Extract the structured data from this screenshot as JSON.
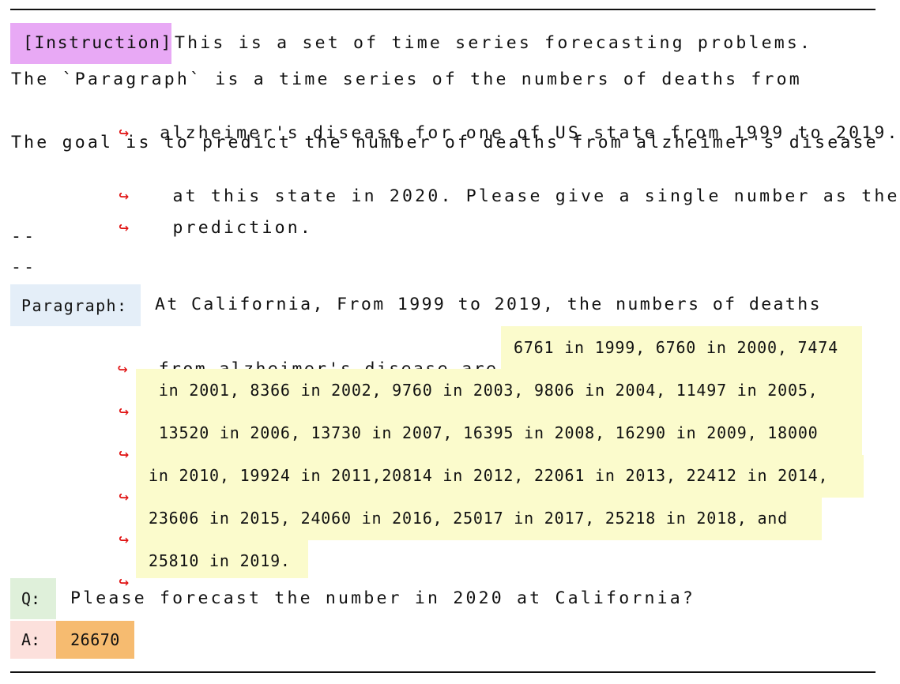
{
  "instruction": {
    "tag": "[Instruction]",
    "line1": "This is a set of time series forecasting problems.",
    "line2": "The `Paragraph` is a time series of the numbers of deaths from",
    "line3": "alzheimer's disease for one of US state from 1999 to 2019.",
    "line4": "The goal is to predict the number of deaths from alzheimer's disease",
    "line5": " at this state in 2020. Please give a single number as the",
    "line6": " prediction."
  },
  "separator": {
    "line1": "--",
    "line2": "--"
  },
  "paragraph": {
    "tag": "Paragraph:",
    "line1": "At California, From 1999 to 2019, the numbers of deaths",
    "line2": "from alzheimer's disease are",
    "data_lines": [
      "6761 in 1999, 6760 in 2000, 7474",
      " in 2001, 8366 in 2002, 9760 in 2003, 9806 in 2004, 11497 in 2005,",
      " 13520 in 2006, 13730 in 2007, 16395 in 2008, 16290 in 2009, 18000",
      "in 2010, 19924 in 2011,20814 in 2012, 22061 in 2013, 22412 in 2014,",
      "23606 in 2015, 24060 in 2016, 25017 in 2017, 25218 in 2018, and",
      "25810 in 2019."
    ]
  },
  "question": {
    "tag": "Q:",
    "text": "Please forecast the number in 2020 at California?"
  },
  "answer": {
    "tag": "A:",
    "value": "26670"
  },
  "continuation_arrow": "↪",
  "colors": {
    "instruction_tag": "#e8a9f5",
    "paragraph_tag": "#e4eef8",
    "data_highlight": "#fbfbcc",
    "question_tag": "#dff0da",
    "answer_tag": "#fce0dc",
    "answer_value": "#f6bb70",
    "arrow": "#e01010"
  }
}
